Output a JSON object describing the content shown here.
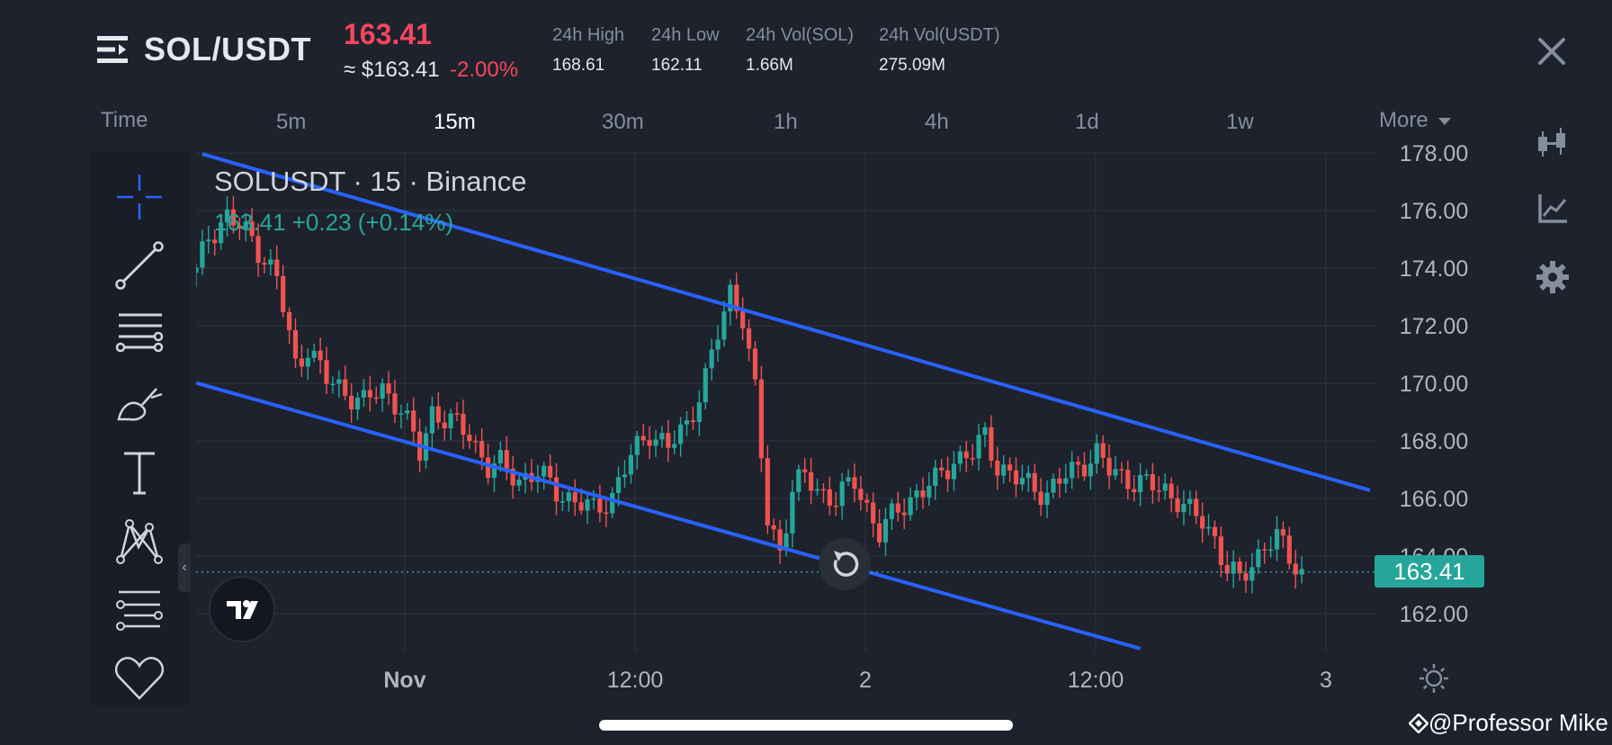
{
  "header": {
    "pair": "SOL/USDT",
    "last_price": "163.41",
    "approx_usd": "≈ $163.41",
    "change_pct": "-2.00%",
    "stats": [
      {
        "label": "24h High",
        "value": "168.61"
      },
      {
        "label": "24h Low",
        "value": "162.11"
      },
      {
        "label": "24h Vol(SOL)",
        "value": "1.66M"
      },
      {
        "label": "24h Vol(USDT)",
        "value": "275.09M"
      }
    ]
  },
  "timeframes": {
    "label": "Time",
    "items": [
      "5m",
      "15m",
      "30m",
      "1h",
      "4h",
      "1d",
      "1w"
    ],
    "active": "15m",
    "more_label": "More"
  },
  "legend": {
    "title": "SOLUSDT · 15 · Binance",
    "values": "163.41  +0.23 (+0.14%)"
  },
  "chart_data": {
    "type": "candlestick",
    "symbol": "SOLUSDT",
    "interval": "15",
    "exchange": "Binance",
    "ylim": [
      160.6,
      178.3
    ],
    "y_ticks": [
      "178.00",
      "176.00",
      "174.00",
      "172.00",
      "170.00",
      "168.00",
      "166.00",
      "164.00",
      "162.00"
    ],
    "x_ticks": [
      "Nov",
      "12:00",
      "2",
      "12:00",
      "3"
    ],
    "current_price": "163.41",
    "up_color": "#26a69a",
    "down_color": "#ef5350",
    "price_path": [
      [
        0,
        174.0
      ],
      [
        2,
        175.3
      ],
      [
        5,
        176.0
      ],
      [
        9,
        175.2
      ],
      [
        13,
        173.8
      ],
      [
        16,
        170.7
      ],
      [
        18,
        171.4
      ],
      [
        21,
        170.2
      ],
      [
        24,
        169.8
      ],
      [
        27,
        169.4
      ],
      [
        30,
        169.9
      ],
      [
        33,
        169.2
      ],
      [
        36,
        167.6
      ],
      [
        38,
        169.1
      ],
      [
        41,
        168.7
      ],
      [
        44,
        168.3
      ],
      [
        47,
        167.1
      ],
      [
        49,
        167.2
      ],
      [
        52,
        166.7
      ],
      [
        55,
        166.9
      ],
      [
        58,
        166.3
      ],
      [
        61,
        165.9
      ],
      [
        64,
        165.6
      ],
      [
        67,
        166.1
      ],
      [
        70,
        167.5
      ],
      [
        73,
        168.4
      ],
      [
        76,
        167.8
      ],
      [
        79,
        168.6
      ],
      [
        82,
        170.3
      ],
      [
        84,
        171.8
      ],
      [
        86,
        173.3
      ],
      [
        88,
        172.5
      ],
      [
        90,
        169.8
      ],
      [
        92,
        165.2
      ],
      [
        94,
        164.2
      ],
      [
        96,
        166.3
      ],
      [
        98,
        166.8
      ],
      [
        100,
        166.3
      ],
      [
        103,
        166.0
      ],
      [
        106,
        166.6
      ],
      [
        108,
        165.7
      ],
      [
        110,
        164.8
      ],
      [
        113,
        165.6
      ],
      [
        116,
        166.2
      ],
      [
        119,
        166.6
      ],
      [
        122,
        167.4
      ],
      [
        125,
        167.6
      ],
      [
        127,
        168.2
      ],
      [
        129,
        167.2
      ],
      [
        132,
        166.7
      ],
      [
        135,
        166.4
      ],
      [
        137,
        166.2
      ],
      [
        140,
        166.8
      ],
      [
        143,
        167.3
      ],
      [
        145,
        167.6
      ],
      [
        147,
        167.0
      ],
      [
        150,
        166.7
      ],
      [
        153,
        166.5
      ],
      [
        156,
        166.3
      ],
      [
        158,
        166.0
      ],
      [
        160,
        165.5
      ],
      [
        162,
        165.2
      ],
      [
        164,
        164.6
      ],
      [
        166,
        163.5
      ],
      [
        168,
        163.1
      ],
      [
        170,
        163.7
      ],
      [
        172,
        164.4
      ],
      [
        174,
        164.6
      ],
      [
        176,
        163.9
      ],
      [
        178,
        163.4
      ]
    ],
    "trendlines": [
      {
        "name": "upper-channel",
        "points": [
          [
            1,
            178.2
          ],
          [
            189,
            166.3
          ]
        ]
      },
      {
        "name": "lower-channel",
        "points": [
          [
            0,
            170.1
          ],
          [
            152,
            160.7
          ]
        ]
      }
    ]
  },
  "tools": [
    "crosshair-icon",
    "trendline-icon",
    "horizontal-lines-icon",
    "brush-icon",
    "text-icon",
    "pattern-icon",
    "fib-icon",
    "favorite-icon"
  ],
  "watermark": "@Professor Mike"
}
